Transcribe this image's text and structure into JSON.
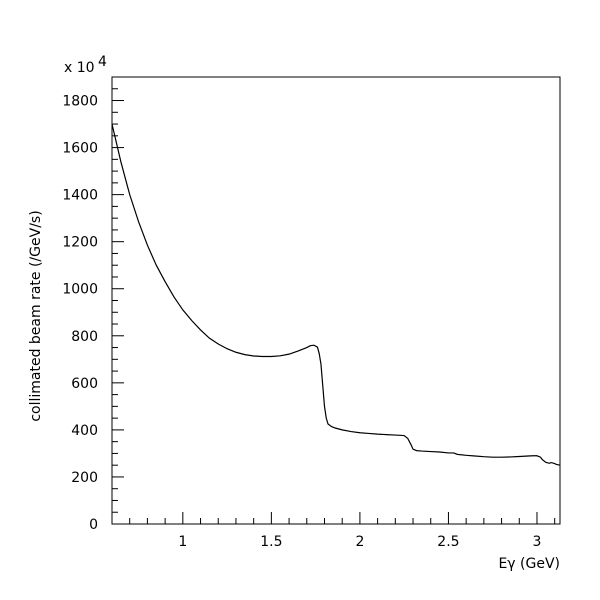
{
  "chart_data": {
    "type": "line",
    "title": "",
    "xlabel": "Eγ (GeV)",
    "ylabel": "collimated beam rate (/GeV/s)",
    "y_multiplier_label": "x 10",
    "y_multiplier_exponent": "4",
    "xlim": [
      0.6,
      3.13
    ],
    "ylim": [
      0,
      1900
    ],
    "x_major_ticks": [
      1,
      1.5,
      2,
      2.5,
      3
    ],
    "x_tick_labels": [
      "1",
      "1.5",
      "2",
      "2.5",
      "3"
    ],
    "x_minor_step": 0.1,
    "y_major_ticks": [
      0,
      200,
      400,
      600,
      800,
      1000,
      1200,
      1400,
      1600,
      1800
    ],
    "y_tick_labels": [
      "0",
      "200",
      "400",
      "600",
      "800",
      "1000",
      "1200",
      "1400",
      "1600",
      "1800"
    ],
    "y_minor_step": 50,
    "grid": false,
    "line_color": "#000000",
    "series": [
      {
        "x": [
          0.6,
          0.65,
          0.7,
          0.75,
          0.8,
          0.85,
          0.9,
          0.95,
          1.0,
          1.05,
          1.1,
          1.15,
          1.2,
          1.25,
          1.3,
          1.35,
          1.4,
          1.45,
          1.5,
          1.55,
          1.6,
          1.65,
          1.7,
          1.72,
          1.74,
          1.76,
          1.77,
          1.78,
          1.79,
          1.8,
          1.81,
          1.82,
          1.84,
          1.86,
          1.9,
          1.95,
          2.0,
          2.05,
          2.1,
          2.15,
          2.2,
          2.25,
          2.27,
          2.29,
          2.3,
          2.32,
          2.35,
          2.4,
          2.45,
          2.5,
          2.53,
          2.55,
          2.6,
          2.65,
          2.7,
          2.75,
          2.8,
          2.85,
          2.9,
          2.95,
          2.98,
          3.0,
          3.02,
          3.03,
          3.05,
          3.07,
          3.08,
          3.1,
          3.11,
          3.13
        ],
        "y": [
          1700,
          1540,
          1400,
          1285,
          1185,
          1100,
          1030,
          965,
          910,
          865,
          825,
          790,
          765,
          745,
          730,
          720,
          714,
          712,
          712,
          715,
          722,
          735,
          750,
          758,
          760,
          752,
          725,
          680,
          590,
          500,
          450,
          425,
          414,
          408,
          400,
          393,
          388,
          385,
          382,
          380,
          378,
          376,
          364,
          335,
          318,
          312,
          310,
          308,
          306,
          302,
          302,
          296,
          292,
          289,
          286,
          284,
          284,
          285,
          287,
          289,
          290,
          290,
          284,
          274,
          262,
          258,
          261,
          257,
          253,
          250
        ]
      }
    ]
  }
}
